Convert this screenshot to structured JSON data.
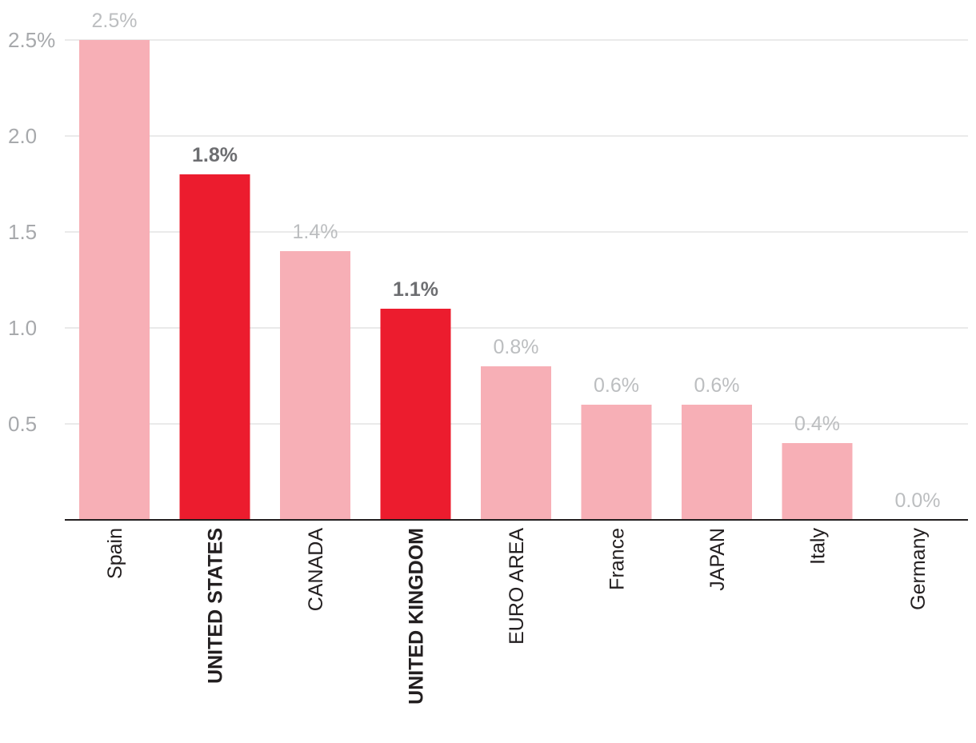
{
  "chart_data": {
    "type": "bar",
    "title": "",
    "xlabel": "",
    "ylabel": "",
    "ylim": [
      0,
      2.5
    ],
    "yticks": [
      {
        "value": 0.5,
        "label": "0.5"
      },
      {
        "value": 1.0,
        "label": "1.0"
      },
      {
        "value": 1.5,
        "label": "1.5"
      },
      {
        "value": 2.0,
        "label": "2.0"
      },
      {
        "value": 2.5,
        "label": "2.5%"
      }
    ],
    "grid": true,
    "categories": [
      "Spain",
      "UNITED STATES",
      "CANADA",
      "UNITED KINGDOM",
      "EURO AREA",
      "France",
      "JAPAN",
      "Italy",
      "Germany"
    ],
    "values": [
      2.5,
      1.8,
      1.4,
      1.1,
      0.8,
      0.6,
      0.6,
      0.4,
      0.0
    ],
    "value_labels": [
      "2.5%",
      "1.8%",
      "1.4%",
      "1.1%",
      "0.8%",
      "0.6%",
      "0.6%",
      "0.4%",
      "0.0%"
    ],
    "highlighted": [
      false,
      true,
      false,
      true,
      false,
      false,
      false,
      false,
      false
    ],
    "colors": {
      "highlight": "#EC1C2E",
      "normal": "#F7AFB6",
      "highlight_label": "#6D6E71",
      "normal_label": "#BCBEC0",
      "axis_tick_label": "#A7A9AC",
      "category_label": "#231F20",
      "gridline": "#E3E3E3",
      "baseline": "#231F20"
    }
  }
}
